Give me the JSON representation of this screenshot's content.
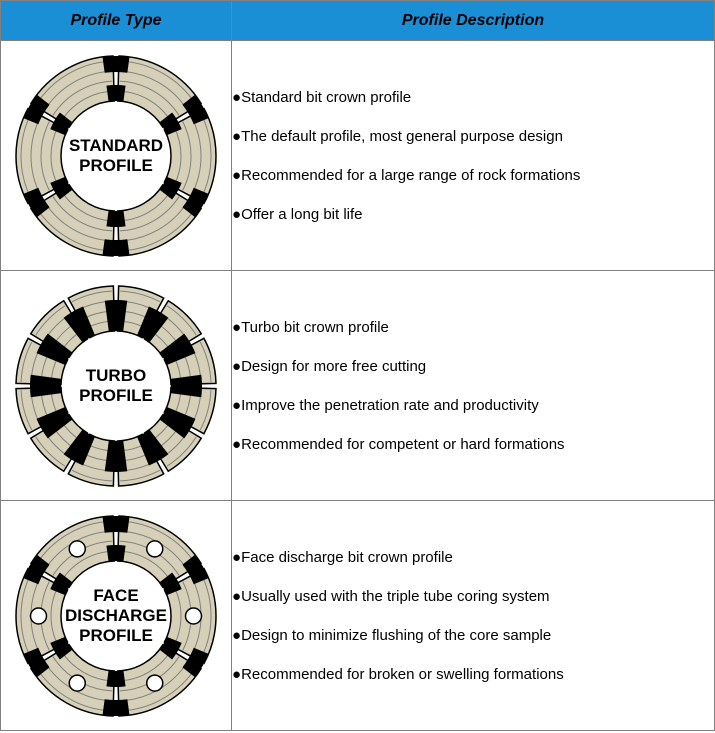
{
  "header": {
    "type": "Profile Type",
    "desc": "Profile Description"
  },
  "colors": {
    "header_bg": "#1b8fd6",
    "border": "#808080",
    "segment_fill": "#d6d0b8",
    "segment_stroke": "#000000",
    "slot": "#000000",
    "groove_stroke": "#808080",
    "hole_fill": "#ffffff",
    "hole_stroke": "#000000",
    "text": "#000000"
  },
  "geometry": {
    "outerR": 100,
    "innerR": 55,
    "grooves": [
      65,
      75,
      85,
      95
    ],
    "segments_standard": 6,
    "segments_turbo": 12,
    "segments_face": 6,
    "hole_r": 8,
    "label_font_size": 17
  },
  "rows": [
    {
      "kind": "standard",
      "label": [
        "STANDARD",
        "PROFILE"
      ],
      "points": [
        "Standard bit crown profile",
        "The default profile, most general purpose design",
        "Recommended for a large range of rock formations",
        "Offer a long bit life"
      ]
    },
    {
      "kind": "turbo",
      "label": [
        "TURBO",
        "PROFILE"
      ],
      "points": [
        "Turbo bit crown profile",
        "Design for more free cutting",
        "Improve the penetration rate and productivity",
        "Recommended for competent or hard formations"
      ]
    },
    {
      "kind": "face",
      "label": [
        "FACE",
        "DISCHARGE",
        "PROFILE"
      ],
      "points": [
        "Face discharge bit crown profile",
        "Usually used with the triple tube coring system",
        "Design to minimize flushing of the core sample",
        "Recommended for broken or swelling formations"
      ]
    }
  ]
}
